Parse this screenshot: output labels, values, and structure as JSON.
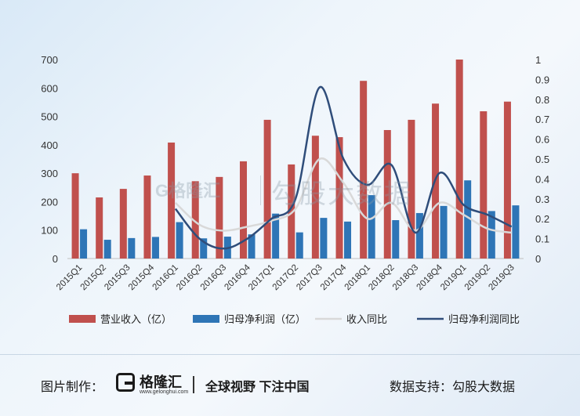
{
  "chart_data": {
    "type": "bar",
    "categories": [
      "2015Q1",
      "2015Q2",
      "2015Q3",
      "2015Q4",
      "2016Q1",
      "2016Q2",
      "2016Q3",
      "2016Q4",
      "2017Q1",
      "2017Q2",
      "2017Q3",
      "2017Q4",
      "2018Q1",
      "2018Q2",
      "2018Q3",
      "2018Q4",
      "2019Q1",
      "2019Q2",
      "2019Q3"
    ],
    "series": [
      {
        "name": "营业收入（亿）",
        "kind": "bar",
        "axis": "left",
        "color": "#c0504d",
        "values": [
          300,
          215,
          245,
          292,
          408,
          272,
          287,
          342,
          488,
          331,
          432,
          427,
          625,
          452,
          488,
          545,
          700,
          518,
          552
        ]
      },
      {
        "name": "归母净利润（亿）",
        "kind": "bar",
        "axis": "left",
        "color": "#2e75b6",
        "values": [
          103,
          66,
          72,
          76,
          128,
          71,
          77,
          85,
          158,
          92,
          143,
          130,
          223,
          135,
          160,
          185,
          275,
          167,
          187
        ]
      },
      {
        "name": "收入同比",
        "kind": "line",
        "axis": "right",
        "color": "#d9d9d9",
        "values": [
          null,
          null,
          null,
          null,
          0.28,
          0.17,
          0.14,
          0.16,
          0.19,
          0.25,
          0.5,
          0.38,
          0.2,
          0.28,
          0.14,
          0.28,
          0.22,
          0.15,
          0.13
        ]
      },
      {
        "name": "归母净利润同比",
        "kind": "line",
        "axis": "right",
        "color": "#2f4d7a",
        "values": [
          null,
          null,
          null,
          null,
          0.25,
          0.1,
          0.05,
          0.1,
          0.2,
          0.3,
          0.86,
          0.5,
          0.37,
          0.47,
          0.13,
          0.43,
          0.27,
          0.22,
          0.16
        ]
      }
    ],
    "ylim_left": [
      0,
      700
    ],
    "yticks_left": [
      "0",
      "100",
      "200",
      "300",
      "400",
      "500",
      "600",
      "700"
    ],
    "ylim_right": [
      0,
      1
    ],
    "yticks_right": [
      "0",
      "0.1",
      "0.2",
      "0.3",
      "0.4",
      "0.5",
      "0.6",
      "0.7",
      "0.8",
      "0.9",
      "1"
    ],
    "legend_position": "bottom",
    "grid": false
  },
  "watermark": {
    "logo": "G格隆汇",
    "text": "勾股大数据"
  },
  "footer": {
    "credit_label": "图片制作：",
    "logo_text": "格隆汇",
    "logo_sub": "www.gelonghui.com",
    "slogan": "全球视野 下注中国",
    "data_support": "数据支持：勾股大数据"
  }
}
